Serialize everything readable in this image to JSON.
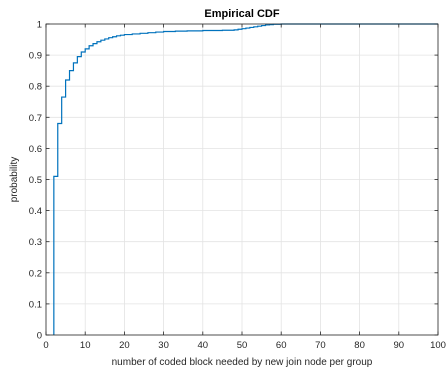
{
  "chart_data": {
    "type": "line",
    "step": true,
    "title": "Empirical CDF",
    "xlabel": "number of coded block needed by new join node per group",
    "ylabel": "probability",
    "xlim": [
      0,
      100
    ],
    "ylim": [
      0,
      1
    ],
    "xticks": [
      0,
      10,
      20,
      30,
      40,
      50,
      60,
      70,
      80,
      90,
      100
    ],
    "yticks": [
      0,
      0.1,
      0.2,
      0.3,
      0.4,
      0.5,
      0.6,
      0.7,
      0.8,
      0.9,
      1
    ],
    "xtick_labels": [
      "0",
      "10",
      "20",
      "30",
      "40",
      "50",
      "60",
      "70",
      "80",
      "90",
      "100"
    ],
    "ytick_labels": [
      "0",
      "0.1",
      "0.2",
      "0.3",
      "0.4",
      "0.5",
      "0.6",
      "0.7",
      "0.8",
      "0.9",
      "1"
    ],
    "grid": true,
    "line_color": "#0072BD",
    "series": [
      {
        "x": [
          2,
          2,
          3,
          4,
          5,
          6,
          7,
          8,
          9,
          10,
          11,
          12,
          13,
          14,
          15,
          16,
          17,
          18,
          19,
          20,
          22,
          24,
          26,
          28,
          30,
          33,
          36,
          40,
          45,
          48,
          49,
          50,
          51,
          52,
          53,
          54,
          55,
          56,
          57,
          58,
          60,
          100
        ],
        "y": [
          0,
          0.51,
          0.68,
          0.765,
          0.82,
          0.85,
          0.875,
          0.895,
          0.91,
          0.92,
          0.93,
          0.937,
          0.943,
          0.948,
          0.952,
          0.956,
          0.959,
          0.962,
          0.964,
          0.966,
          0.968,
          0.97,
          0.972,
          0.974,
          0.976,
          0.977,
          0.978,
          0.979,
          0.98,
          0.981,
          0.983,
          0.985,
          0.987,
          0.989,
          0.991,
          0.993,
          0.995,
          0.997,
          0.998,
          0.999,
          1,
          1
        ]
      }
    ]
  }
}
